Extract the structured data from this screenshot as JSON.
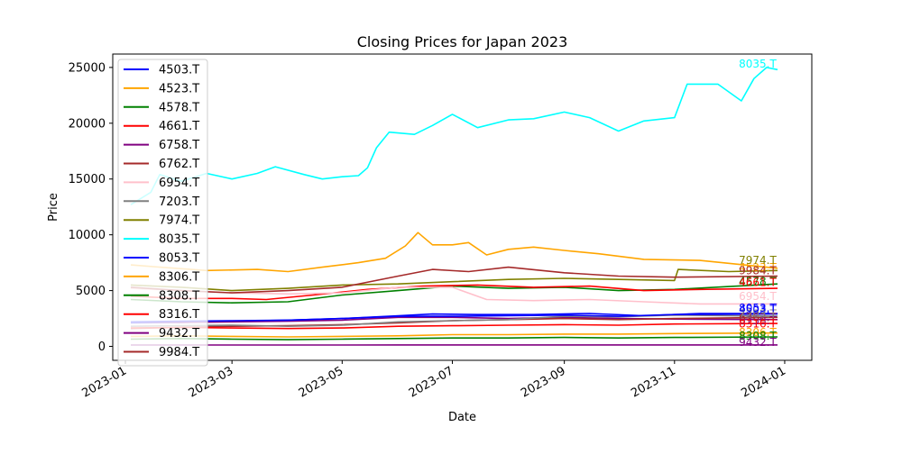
{
  "chart_data": {
    "type": "line",
    "title": "Closing Prices for Japan 2023",
    "xlabel": "Date",
    "ylabel": "Price",
    "xlim": [
      "2022-12-25",
      "2024-01-16"
    ],
    "ylim": [
      -1250,
      26200
    ],
    "x_ticks": [
      {
        "date": "2023-01-01",
        "label": "2023-01"
      },
      {
        "date": "2023-03-01",
        "label": "2023-03"
      },
      {
        "date": "2023-05-01",
        "label": "2023-05"
      },
      {
        "date": "2023-07-01",
        "label": "2023-07"
      },
      {
        "date": "2023-09-01",
        "label": "2023-09"
      },
      {
        "date": "2023-11-01",
        "label": "2023-11"
      },
      {
        "date": "2024-01-01",
        "label": "2024-01"
      }
    ],
    "y_ticks": [
      0,
      5000,
      10000,
      15000,
      20000,
      25000
    ],
    "grid": false,
    "legend_position": "upper-left",
    "series": [
      {
        "name": "4503.T",
        "color": "#0000ff",
        "label_y": 3300,
        "points": [
          [
            "2023-01-04",
            2100
          ],
          [
            "2023-02-01",
            2150
          ],
          [
            "2023-03-01",
            2250
          ],
          [
            "2023-04-01",
            2350
          ],
          [
            "2023-05-01",
            2500
          ],
          [
            "2023-06-01",
            2750
          ],
          [
            "2023-06-20",
            2900
          ],
          [
            "2023-07-15",
            2850
          ],
          [
            "2023-08-15",
            2850
          ],
          [
            "2023-09-15",
            2950
          ],
          [
            "2023-10-15",
            2750
          ],
          [
            "2023-11-15",
            2950
          ],
          [
            "2023-12-28",
            2950
          ]
        ]
      },
      {
        "name": "4523.T",
        "color": "#ffa500",
        "label_y": 7050,
        "points": [
          [
            "2023-01-04",
            7300
          ],
          [
            "2023-01-20",
            7100
          ],
          [
            "2023-02-15",
            6800
          ],
          [
            "2023-03-15",
            6900
          ],
          [
            "2023-04-01",
            6700
          ],
          [
            "2023-04-20",
            7100
          ],
          [
            "2023-05-10",
            7500
          ],
          [
            "2023-05-25",
            7900
          ],
          [
            "2023-06-05",
            9000
          ],
          [
            "2023-06-12",
            10200
          ],
          [
            "2023-06-20",
            9100
          ],
          [
            "2023-07-01",
            9100
          ],
          [
            "2023-07-10",
            9300
          ],
          [
            "2023-07-20",
            8200
          ],
          [
            "2023-08-01",
            8700
          ],
          [
            "2023-08-15",
            8900
          ],
          [
            "2023-09-01",
            8600
          ],
          [
            "2023-09-20",
            8300
          ],
          [
            "2023-10-15",
            7800
          ],
          [
            "2023-11-15",
            7700
          ],
          [
            "2023-12-28",
            7000
          ]
        ]
      },
      {
        "name": "4578.T",
        "color": "#008000",
        "label_y": 5800,
        "points": [
          [
            "2023-01-04",
            4200
          ],
          [
            "2023-02-01",
            4000
          ],
          [
            "2023-03-01",
            3900
          ],
          [
            "2023-04-01",
            4000
          ],
          [
            "2023-05-01",
            4600
          ],
          [
            "2023-06-01",
            5000
          ],
          [
            "2023-07-01",
            5400
          ],
          [
            "2023-08-01",
            5200
          ],
          [
            "2023-09-01",
            5300
          ],
          [
            "2023-10-01",
            5000
          ],
          [
            "2023-11-01",
            5100
          ],
          [
            "2023-12-28",
            5600
          ]
        ]
      },
      {
        "name": "4661.T",
        "color": "#ff0000",
        "label_y": 5750,
        "points": [
          [
            "2023-01-04",
            4500
          ],
          [
            "2023-02-01",
            4300
          ],
          [
            "2023-03-01",
            4300
          ],
          [
            "2023-03-20",
            4200
          ],
          [
            "2023-04-15",
            4600
          ],
          [
            "2023-05-15",
            5100
          ],
          [
            "2023-06-15",
            5400
          ],
          [
            "2023-07-15",
            5500
          ],
          [
            "2023-08-15",
            5300
          ],
          [
            "2023-09-15",
            5400
          ],
          [
            "2023-10-15",
            5000
          ],
          [
            "2023-11-15",
            5100
          ],
          [
            "2023-12-28",
            5200
          ]
        ]
      },
      {
        "name": "6758.T",
        "color": "#800080",
        "label_y": 2300,
        "points": [
          [
            "2023-01-04",
            2200
          ],
          [
            "2023-02-01",
            2150
          ],
          [
            "2023-03-01",
            2200
          ],
          [
            "2023-04-01",
            2250
          ],
          [
            "2023-05-01",
            2350
          ],
          [
            "2023-06-01",
            2600
          ],
          [
            "2023-07-01",
            2600
          ],
          [
            "2023-08-01",
            2500
          ],
          [
            "2023-09-01",
            2600
          ],
          [
            "2023-10-01",
            2500
          ],
          [
            "2023-11-01",
            2450
          ],
          [
            "2023-12-28",
            2400
          ]
        ]
      },
      {
        "name": "6762.T",
        "color": "#a52a2a",
        "label_y": 2600,
        "points": [
          [
            "2023-01-04",
            1600
          ],
          [
            "2023-02-01",
            1700
          ],
          [
            "2023-03-01",
            1800
          ],
          [
            "2023-04-01",
            1850
          ],
          [
            "2023-05-01",
            1950
          ],
          [
            "2023-06-01",
            2100
          ],
          [
            "2023-07-01",
            2300
          ],
          [
            "2023-08-01",
            2400
          ],
          [
            "2023-09-01",
            2500
          ],
          [
            "2023-10-01",
            2400
          ],
          [
            "2023-11-01",
            2500
          ],
          [
            "2023-12-28",
            2600
          ]
        ]
      },
      {
        "name": "6954.T",
        "color": "#ffc0cb",
        "label_y": 4500,
        "points": [
          [
            "2023-01-04",
            5200
          ],
          [
            "2023-02-01",
            5000
          ],
          [
            "2023-03-01",
            4800
          ],
          [
            "2023-04-01",
            4700
          ],
          [
            "2023-05-01",
            4800
          ],
          [
            "2023-06-01",
            5300
          ],
          [
            "2023-07-01",
            5300
          ],
          [
            "2023-07-20",
            4200
          ],
          [
            "2023-08-15",
            4100
          ],
          [
            "2023-09-15",
            4200
          ],
          [
            "2023-10-15",
            4000
          ],
          [
            "2023-11-15",
            3800
          ],
          [
            "2023-12-28",
            3800
          ]
        ]
      },
      {
        "name": "7203.T",
        "color": "#808080",
        "label_y": 2900,
        "points": [
          [
            "2023-01-04",
            1800
          ],
          [
            "2023-02-01",
            1850
          ],
          [
            "2023-03-01",
            1900
          ],
          [
            "2023-04-01",
            1800
          ],
          [
            "2023-05-01",
            1900
          ],
          [
            "2023-06-01",
            2200
          ],
          [
            "2023-07-01",
            2300
          ],
          [
            "2023-08-01",
            2400
          ],
          [
            "2023-09-01",
            2700
          ],
          [
            "2023-10-01",
            2650
          ],
          [
            "2023-11-01",
            2800
          ],
          [
            "2023-12-28",
            2700
          ]
        ]
      },
      {
        "name": "7974.T",
        "color": "#808000",
        "label_y": 7700,
        "points": [
          [
            "2023-01-04",
            5500
          ],
          [
            "2023-02-01",
            5300
          ],
          [
            "2023-03-01",
            5000
          ],
          [
            "2023-04-01",
            5200
          ],
          [
            "2023-05-01",
            5500
          ],
          [
            "2023-06-01",
            5600
          ],
          [
            "2023-07-01",
            5800
          ],
          [
            "2023-08-01",
            6000
          ],
          [
            "2023-09-01",
            6100
          ],
          [
            "2023-10-01",
            6000
          ],
          [
            "2023-11-01",
            5900
          ],
          [
            "2023-11-03",
            6900
          ],
          [
            "2023-12-01",
            6700
          ],
          [
            "2023-12-28",
            6800
          ]
        ]
      },
      {
        "name": "8035.T",
        "color": "#00ffff",
        "label_y": 25300,
        "points": [
          [
            "2023-01-04",
            12700
          ],
          [
            "2023-01-15",
            13800
          ],
          [
            "2023-01-20",
            15400
          ],
          [
            "2023-02-01",
            14800
          ],
          [
            "2023-02-15",
            15500
          ],
          [
            "2023-03-01",
            15000
          ],
          [
            "2023-03-15",
            15500
          ],
          [
            "2023-03-25",
            16100
          ],
          [
            "2023-04-10",
            15400
          ],
          [
            "2023-04-20",
            15000
          ],
          [
            "2023-05-01",
            15200
          ],
          [
            "2023-05-10",
            15300
          ],
          [
            "2023-05-15",
            16000
          ],
          [
            "2023-05-20",
            17800
          ],
          [
            "2023-05-27",
            19200
          ],
          [
            "2023-06-10",
            19000
          ],
          [
            "2023-06-20",
            19800
          ],
          [
            "2023-07-01",
            20800
          ],
          [
            "2023-07-15",
            19600
          ],
          [
            "2023-08-01",
            20300
          ],
          [
            "2023-08-15",
            20400
          ],
          [
            "2023-09-01",
            21000
          ],
          [
            "2023-09-15",
            20500
          ],
          [
            "2023-10-01",
            19300
          ],
          [
            "2023-10-15",
            20200
          ],
          [
            "2023-11-01",
            20500
          ],
          [
            "2023-11-08",
            23500
          ],
          [
            "2023-11-25",
            23500
          ],
          [
            "2023-12-08",
            22000
          ],
          [
            "2023-12-15",
            24000
          ],
          [
            "2023-12-22",
            25000
          ],
          [
            "2023-12-28",
            24800
          ]
        ]
      },
      {
        "name": "8053.T",
        "color": "#0000ff",
        "label_y": 3450,
        "points": [
          [
            "2023-01-04",
            2200
          ],
          [
            "2023-02-01",
            2250
          ],
          [
            "2023-03-01",
            2300
          ],
          [
            "2023-04-01",
            2350
          ],
          [
            "2023-05-01",
            2500
          ],
          [
            "2023-06-01",
            2700
          ],
          [
            "2023-07-01",
            2700
          ],
          [
            "2023-08-01",
            2750
          ],
          [
            "2023-09-01",
            2800
          ],
          [
            "2023-10-01",
            2700
          ],
          [
            "2023-11-01",
            2850
          ],
          [
            "2023-12-28",
            2900
          ]
        ]
      },
      {
        "name": "8306.T",
        "color": "#ffa500",
        "label_y": 1250,
        "points": [
          [
            "2023-01-04",
            900
          ],
          [
            "2023-02-01",
            950
          ],
          [
            "2023-03-01",
            900
          ],
          [
            "2023-04-01",
            850
          ],
          [
            "2023-05-01",
            900
          ],
          [
            "2023-06-01",
            950
          ],
          [
            "2023-07-01",
            1050
          ],
          [
            "2023-08-01",
            1050
          ],
          [
            "2023-09-01",
            1100
          ],
          [
            "2023-10-01",
            1100
          ],
          [
            "2023-11-01",
            1150
          ],
          [
            "2023-12-28",
            1200
          ]
        ]
      },
      {
        "name": "8308.T",
        "color": "#008000",
        "label_y": 950,
        "points": [
          [
            "2023-01-04",
            650
          ],
          [
            "2023-02-01",
            700
          ],
          [
            "2023-03-01",
            650
          ],
          [
            "2023-04-01",
            600
          ],
          [
            "2023-05-01",
            650
          ],
          [
            "2023-06-01",
            700
          ],
          [
            "2023-07-01",
            750
          ],
          [
            "2023-08-01",
            750
          ],
          [
            "2023-09-01",
            800
          ],
          [
            "2023-10-01",
            750
          ],
          [
            "2023-11-01",
            800
          ],
          [
            "2023-12-28",
            850
          ]
        ]
      },
      {
        "name": "8316.T",
        "color": "#ff0000",
        "label_y": 2000,
        "points": [
          [
            "2023-01-04",
            1650
          ],
          [
            "2023-02-01",
            1700
          ],
          [
            "2023-03-01",
            1650
          ],
          [
            "2023-04-01",
            1600
          ],
          [
            "2023-05-01",
            1650
          ],
          [
            "2023-06-01",
            1800
          ],
          [
            "2023-07-01",
            1850
          ],
          [
            "2023-08-01",
            1900
          ],
          [
            "2023-09-01",
            1950
          ],
          [
            "2023-10-01",
            1900
          ],
          [
            "2023-11-01",
            2000
          ],
          [
            "2023-12-28",
            2050
          ]
        ]
      },
      {
        "name": "9432.T",
        "color": "#800080",
        "label_y": 350,
        "points": [
          [
            "2023-01-04",
            120
          ],
          [
            "2023-02-01",
            120
          ],
          [
            "2023-03-01",
            120
          ],
          [
            "2023-04-01",
            120
          ],
          [
            "2023-05-01",
            125
          ],
          [
            "2023-06-01",
            130
          ],
          [
            "2023-07-01",
            130
          ],
          [
            "2023-08-01",
            130
          ],
          [
            "2023-09-01",
            130
          ],
          [
            "2023-10-01",
            130
          ],
          [
            "2023-11-01",
            130
          ],
          [
            "2023-12-28",
            130
          ]
        ]
      },
      {
        "name": "9984.T",
        "color": "#a52a2a",
        "label_y": 6800,
        "points": [
          [
            "2023-01-04",
            5300
          ],
          [
            "2023-02-01",
            5000
          ],
          [
            "2023-03-01",
            4800
          ],
          [
            "2023-04-01",
            5000
          ],
          [
            "2023-05-01",
            5300
          ],
          [
            "2023-06-01",
            6300
          ],
          [
            "2023-06-20",
            6900
          ],
          [
            "2023-07-10",
            6700
          ],
          [
            "2023-08-01",
            7100
          ],
          [
            "2023-09-01",
            6600
          ],
          [
            "2023-10-01",
            6300
          ],
          [
            "2023-11-01",
            6200
          ],
          [
            "2023-12-28",
            6300
          ]
        ]
      }
    ]
  }
}
